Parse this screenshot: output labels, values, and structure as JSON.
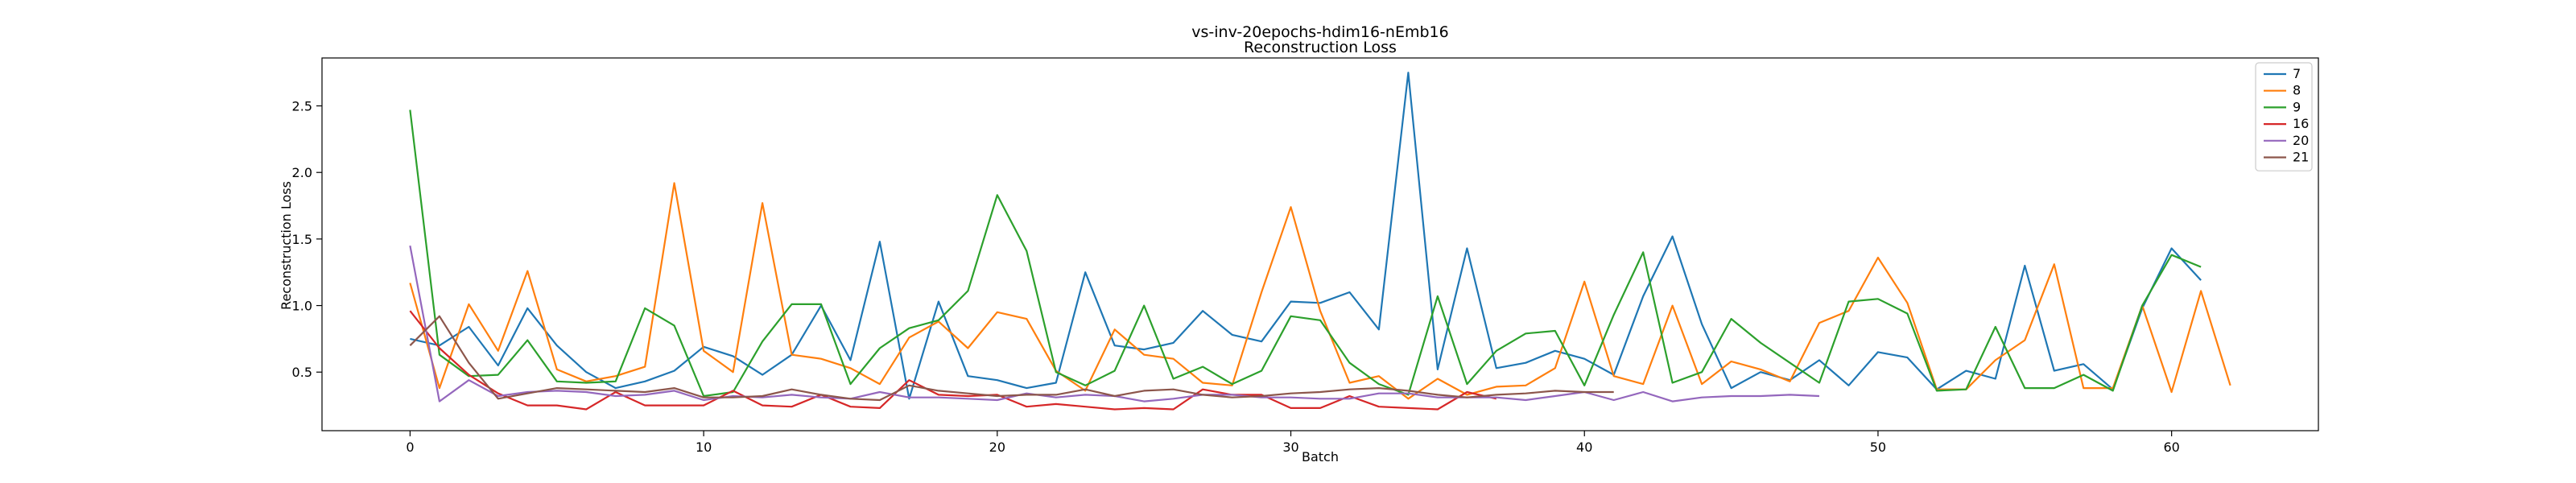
{
  "chart_data": {
    "type": "line",
    "title": "vs-inv-20epochs-hdim16-nEmb16",
    "subtitle": "Reconstruction Loss",
    "xlabel": "Batch",
    "ylabel": "Reconstruction Loss",
    "xlim": [
      -3,
      65
    ],
    "ylim": [
      0.06,
      2.86
    ],
    "xticks": [
      "0",
      "10",
      "20",
      "30",
      "40",
      "50",
      "60"
    ],
    "yticks": [
      "0.5",
      "1.0",
      "1.5",
      "2.0",
      "2.5"
    ],
    "xtick_values": [
      0,
      10,
      20,
      30,
      40,
      50,
      60
    ],
    "ytick_values": [
      0.5,
      1.0,
      1.5,
      2.0,
      2.5
    ],
    "grid": false,
    "legend_position": "top-right",
    "series": [
      {
        "name": "7",
        "color": "#1f77b4",
        "values": [
          0.75,
          0.7,
          0.84,
          0.55,
          0.98,
          0.7,
          0.5,
          0.38,
          0.43,
          0.51,
          0.69,
          0.62,
          0.48,
          0.63,
          1.0,
          0.59,
          1.48,
          0.3,
          1.03,
          0.47,
          0.44,
          0.38,
          0.42,
          1.25,
          0.7,
          0.67,
          0.72,
          0.96,
          0.78,
          0.73,
          1.03,
          1.02,
          1.1,
          0.82,
          2.75,
          0.52,
          1.43,
          0.53,
          0.57,
          0.66,
          0.6,
          0.48,
          1.07,
          1.52,
          0.86,
          0.38,
          0.5,
          0.44,
          0.59,
          0.4,
          0.65,
          0.61,
          0.37,
          0.51,
          0.45,
          1.3,
          0.51,
          0.56,
          0.37,
          0.98,
          1.43,
          1.19
        ]
      },
      {
        "name": "8",
        "color": "#ff7f0e",
        "values": [
          1.17,
          0.38,
          1.01,
          0.66,
          1.26,
          0.52,
          0.43,
          0.47,
          0.54,
          1.92,
          0.66,
          0.5,
          1.77,
          0.63,
          0.6,
          0.53,
          0.41,
          0.76,
          0.88,
          0.68,
          0.95,
          0.9,
          0.51,
          0.36,
          0.82,
          0.63,
          0.6,
          0.42,
          0.4,
          1.1,
          1.74,
          0.96,
          0.42,
          0.47,
          0.3,
          0.45,
          0.33,
          0.39,
          0.4,
          0.53,
          1.18,
          0.47,
          0.41,
          1.0,
          0.41,
          0.58,
          0.52,
          0.43,
          0.87,
          0.96,
          1.36,
          1.02,
          0.37,
          0.37,
          0.59,
          0.74,
          1.31,
          0.38,
          0.38,
          1.0,
          0.35,
          1.11,
          0.4
        ]
      },
      {
        "name": "9",
        "color": "#2ca02c",
        "values": [
          2.47,
          0.63,
          0.47,
          0.48,
          0.74,
          0.43,
          0.42,
          0.43,
          0.98,
          0.85,
          0.32,
          0.35,
          0.73,
          1.01,
          1.01,
          0.41,
          0.68,
          0.83,
          0.89,
          1.11,
          1.83,
          1.41,
          0.5,
          0.4,
          0.51,
          1.0,
          0.45,
          0.54,
          0.41,
          0.51,
          0.92,
          0.89,
          0.57,
          0.41,
          0.33,
          1.07,
          0.41,
          0.66,
          0.79,
          0.81,
          0.4,
          0.93,
          1.4,
          0.42,
          0.5,
          0.9,
          0.72,
          0.57,
          0.42,
          1.03,
          1.05,
          0.94,
          0.36,
          0.37,
          0.84,
          0.38,
          0.38,
          0.48,
          0.36,
          1.0,
          1.38,
          1.29
        ]
      },
      {
        "name": "16",
        "color": "#d62728",
        "values": [
          0.96,
          0.68,
          0.48,
          0.34,
          0.25,
          0.25,
          0.22,
          0.35,
          0.25,
          0.25,
          0.25,
          0.36,
          0.25,
          0.24,
          0.33,
          0.24,
          0.23,
          0.44,
          0.33,
          0.32,
          0.33,
          0.24,
          0.26,
          0.24,
          0.22,
          0.23,
          0.22,
          0.37,
          0.33,
          0.33,
          0.23,
          0.23,
          0.32,
          0.24,
          0.23,
          0.22,
          0.35,
          0.3
        ]
      },
      {
        "name": "20",
        "color": "#9467bd",
        "values": [
          1.45,
          0.28,
          0.44,
          0.32,
          0.35,
          0.36,
          0.35,
          0.32,
          0.33,
          0.36,
          0.29,
          0.32,
          0.31,
          0.33,
          0.31,
          0.3,
          0.35,
          0.31,
          0.31,
          0.3,
          0.29,
          0.34,
          0.31,
          0.33,
          0.32,
          0.28,
          0.3,
          0.33,
          0.33,
          0.31,
          0.31,
          0.3,
          0.3,
          0.34,
          0.34,
          0.31,
          0.31,
          0.31,
          0.29,
          0.32,
          0.35,
          0.29,
          0.35,
          0.28,
          0.31,
          0.32,
          0.32,
          0.33,
          0.32
        ]
      },
      {
        "name": "21",
        "color": "#8c564b",
        "values": [
          0.7,
          0.92,
          0.57,
          0.3,
          0.34,
          0.38,
          0.37,
          0.36,
          0.35,
          0.38,
          0.31,
          0.31,
          0.32,
          0.37,
          0.33,
          0.3,
          0.29,
          0.4,
          0.36,
          0.34,
          0.32,
          0.33,
          0.33,
          0.37,
          0.32,
          0.36,
          0.37,
          0.33,
          0.31,
          0.32,
          0.34,
          0.35,
          0.37,
          0.38,
          0.36,
          0.33,
          0.31,
          0.33,
          0.34,
          0.36,
          0.35,
          0.35
        ]
      }
    ]
  }
}
